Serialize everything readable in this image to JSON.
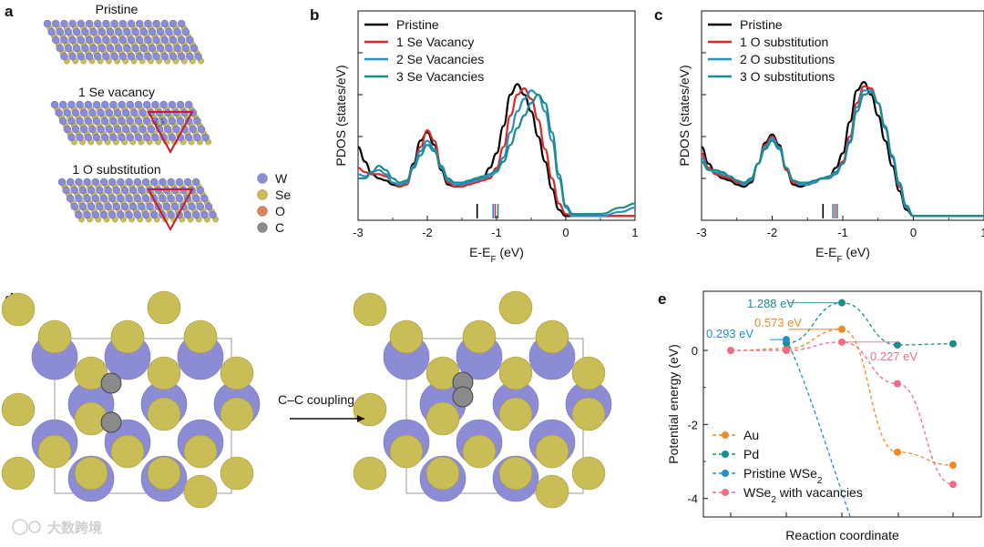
{
  "panels": {
    "a": {
      "letter": "a",
      "titles": [
        "Pristine",
        "1 Se vacancy",
        "1 O substitution"
      ],
      "atom_legend": [
        {
          "name": "W",
          "color": "#8c8cd6"
        },
        {
          "name": "Se",
          "color": "#c9bd58"
        },
        {
          "name": "O",
          "color": "#d9825e"
        },
        {
          "name": "C",
          "color": "#8a8a8a"
        }
      ]
    },
    "b": {
      "letter": "b"
    },
    "c": {
      "letter": "c"
    },
    "d": {
      "letter": "d",
      "arrow_label": "C–C coupling"
    },
    "e": {
      "letter": "e"
    }
  },
  "chart_data": [
    {
      "panel": "b",
      "type": "line",
      "xlabel": "E-E",
      "xlabel_sub": "F",
      "xlabel_unit": " (eV)",
      "ylabel": "PDOS (states/eV)",
      "xlim": [
        -3,
        1
      ],
      "ylim": [
        0,
        1
      ],
      "xticks": [
        -3,
        -2,
        -1,
        0,
        1
      ],
      "legend_placement": "top-left",
      "series": [
        {
          "name": "Pristine",
          "color": "#000000",
          "x": [
            -3,
            -2.9,
            -2.8,
            -2.7,
            -2.6,
            -2.5,
            -2.4,
            -2.3,
            -2.2,
            -2.1,
            -2.0,
            -1.9,
            -1.8,
            -1.7,
            -1.6,
            -1.5,
            -1.4,
            -1.3,
            -1.2,
            -1.1,
            -1.0,
            -0.9,
            -0.8,
            -0.7,
            -0.6,
            -0.5,
            -0.4,
            -0.3,
            -0.2,
            -0.1,
            0,
            0.1,
            0.2,
            0.5,
            1
          ],
          "y": [
            0.35,
            0.28,
            0.22,
            0.2,
            0.19,
            0.17,
            0.16,
            0.18,
            0.27,
            0.38,
            0.42,
            0.36,
            0.24,
            0.17,
            0.16,
            0.17,
            0.18,
            0.2,
            0.2,
            0.25,
            0.32,
            0.45,
            0.6,
            0.65,
            0.6,
            0.52,
            0.4,
            0.28,
            0.15,
            0.05,
            0.02,
            0.02,
            0.02,
            0.02,
            0.02
          ]
        },
        {
          "name": "1 Se Vacancy",
          "color": "#d62b2b",
          "x": [
            -3,
            -2.9,
            -2.8,
            -2.7,
            -2.6,
            -2.5,
            -2.4,
            -2.3,
            -2.2,
            -2.1,
            -2.0,
            -1.9,
            -1.8,
            -1.7,
            -1.6,
            -1.5,
            -1.4,
            -1.3,
            -1.2,
            -1.1,
            -1.0,
            -0.9,
            -0.8,
            -0.7,
            -0.6,
            -0.5,
            -0.4,
            -0.3,
            -0.2,
            -0.1,
            0,
            0.1,
            0.2,
            0.5,
            1
          ],
          "y": [
            0.25,
            0.23,
            0.22,
            0.22,
            0.21,
            0.18,
            0.16,
            0.17,
            0.25,
            0.35,
            0.43,
            0.38,
            0.26,
            0.18,
            0.16,
            0.16,
            0.17,
            0.18,
            0.19,
            0.2,
            0.25,
            0.35,
            0.5,
            0.6,
            0.63,
            0.58,
            0.48,
            0.34,
            0.2,
            0.08,
            0.03,
            0.02,
            0.02,
            0.02,
            0.02
          ]
        },
        {
          "name": "2 Se Vacancies",
          "color": "#2a8fc4",
          "x": [
            -3,
            -2.9,
            -2.8,
            -2.7,
            -2.6,
            -2.5,
            -2.4,
            -2.3,
            -2.2,
            -2.1,
            -2.0,
            -1.9,
            -1.8,
            -1.7,
            -1.6,
            -1.5,
            -1.4,
            -1.3,
            -1.2,
            -1.1,
            -1.0,
            -0.9,
            -0.8,
            -0.7,
            -0.6,
            -0.5,
            -0.4,
            -0.3,
            -0.2,
            -0.1,
            0,
            0.1,
            0.2,
            0.5,
            0.8,
            1
          ],
          "y": [
            0.22,
            0.21,
            0.23,
            0.24,
            0.22,
            0.18,
            0.17,
            0.18,
            0.26,
            0.33,
            0.38,
            0.34,
            0.25,
            0.19,
            0.17,
            0.17,
            0.18,
            0.19,
            0.2,
            0.21,
            0.23,
            0.3,
            0.42,
            0.52,
            0.58,
            0.62,
            0.6,
            0.52,
            0.38,
            0.2,
            0.06,
            0.02,
            0.02,
            0.02,
            0.04,
            0.06
          ]
        },
        {
          "name": "3 Se Vacancies",
          "color": "#1a8c8c",
          "x": [
            -3,
            -2.9,
            -2.8,
            -2.7,
            -2.6,
            -2.5,
            -2.4,
            -2.3,
            -2.2,
            -2.1,
            -2.0,
            -1.9,
            -1.8,
            -1.7,
            -1.6,
            -1.5,
            -1.4,
            -1.3,
            -1.2,
            -1.1,
            -1.0,
            -0.9,
            -0.8,
            -0.7,
            -0.6,
            -0.5,
            -0.4,
            -0.3,
            -0.2,
            -0.1,
            0,
            0.1,
            0.2,
            0.5,
            0.8,
            1
          ],
          "y": [
            0.2,
            0.2,
            0.23,
            0.26,
            0.24,
            0.2,
            0.18,
            0.19,
            0.25,
            0.31,
            0.36,
            0.33,
            0.26,
            0.2,
            0.18,
            0.18,
            0.19,
            0.2,
            0.21,
            0.22,
            0.24,
            0.28,
            0.36,
            0.44,
            0.5,
            0.56,
            0.6,
            0.56,
            0.42,
            0.22,
            0.07,
            0.03,
            0.03,
            0.03,
            0.06,
            0.08
          ]
        }
      ],
      "fermi_markers": [
        {
          "x": -1.28,
          "color": "#000000"
        },
        {
          "x": -1.05,
          "color": "#2a8fc4"
        },
        {
          "x": -1.02,
          "color": "#d62b2b"
        },
        {
          "x": -0.98,
          "color": "#1a8c8c"
        }
      ]
    },
    {
      "panel": "c",
      "type": "line",
      "xlabel": "E-E",
      "xlabel_sub": "F",
      "xlabel_unit": " (eV)",
      "ylabel": "PDOS (states/eV)",
      "xlim": [
        -3,
        1
      ],
      "ylim": [
        0,
        1
      ],
      "xticks": [
        -3,
        -2,
        -1,
        0,
        1
      ],
      "legend_placement": "top-left",
      "series": [
        {
          "name": "Pristine",
          "color": "#000000",
          "x": [
            -3,
            -2.9,
            -2.8,
            -2.7,
            -2.6,
            -2.5,
            -2.4,
            -2.3,
            -2.2,
            -2.1,
            -2.0,
            -1.9,
            -1.8,
            -1.7,
            -1.6,
            -1.5,
            -1.4,
            -1.3,
            -1.2,
            -1.1,
            -1.0,
            -0.9,
            -0.8,
            -0.7,
            -0.6,
            -0.5,
            -0.4,
            -0.3,
            -0.2,
            -0.1,
            0,
            0.1,
            0.2,
            0.5,
            1
          ],
          "y": [
            0.35,
            0.27,
            0.22,
            0.2,
            0.19,
            0.17,
            0.16,
            0.18,
            0.27,
            0.37,
            0.41,
            0.36,
            0.24,
            0.17,
            0.16,
            0.17,
            0.18,
            0.2,
            0.2,
            0.25,
            0.32,
            0.47,
            0.62,
            0.66,
            0.6,
            0.5,
            0.38,
            0.26,
            0.14,
            0.05,
            0.02,
            0.02,
            0.02,
            0.02,
            0.02
          ]
        },
        {
          "name": "1 O substitution",
          "color": "#d62b2b",
          "x": [
            -3,
            -2.9,
            -2.8,
            -2.7,
            -2.6,
            -2.5,
            -2.4,
            -2.3,
            -2.2,
            -2.1,
            -2.0,
            -1.9,
            -1.8,
            -1.7,
            -1.6,
            -1.5,
            -1.4,
            -1.3,
            -1.2,
            -1.1,
            -1.0,
            -0.9,
            -0.8,
            -0.7,
            -0.6,
            -0.5,
            -0.4,
            -0.3,
            -0.2,
            -0.1,
            0,
            0.1,
            0.2,
            0.5,
            1
          ],
          "y": [
            0.32,
            0.25,
            0.22,
            0.21,
            0.2,
            0.18,
            0.17,
            0.19,
            0.27,
            0.36,
            0.4,
            0.35,
            0.24,
            0.18,
            0.17,
            0.17,
            0.18,
            0.2,
            0.2,
            0.22,
            0.28,
            0.4,
            0.56,
            0.64,
            0.63,
            0.56,
            0.44,
            0.3,
            0.16,
            0.06,
            0.02,
            0.02,
            0.02,
            0.02,
            0.02
          ]
        },
        {
          "name": "2 O substitutions",
          "color": "#2a8fc4",
          "x": [
            -3,
            -2.9,
            -2.8,
            -2.7,
            -2.6,
            -2.5,
            -2.4,
            -2.3,
            -2.2,
            -2.1,
            -2.0,
            -1.9,
            -1.8,
            -1.7,
            -1.6,
            -1.5,
            -1.4,
            -1.3,
            -1.2,
            -1.1,
            -1.0,
            -0.9,
            -0.8,
            -0.7,
            -0.6,
            -0.5,
            -0.4,
            -0.3,
            -0.2,
            -0.1,
            0,
            0.1,
            0.2,
            0.5,
            1
          ],
          "y": [
            0.3,
            0.24,
            0.23,
            0.22,
            0.21,
            0.19,
            0.17,
            0.19,
            0.27,
            0.35,
            0.39,
            0.35,
            0.25,
            0.19,
            0.17,
            0.17,
            0.18,
            0.2,
            0.2,
            0.22,
            0.27,
            0.38,
            0.54,
            0.62,
            0.62,
            0.56,
            0.44,
            0.3,
            0.17,
            0.06,
            0.02,
            0.02,
            0.02,
            0.02,
            0.02
          ]
        },
        {
          "name": "3 O substitutions",
          "color": "#1a8c8c",
          "x": [
            -3,
            -2.9,
            -2.8,
            -2.7,
            -2.6,
            -2.5,
            -2.4,
            -2.3,
            -2.2,
            -2.1,
            -2.0,
            -1.9,
            -1.8,
            -1.7,
            -1.6,
            -1.5,
            -1.4,
            -1.3,
            -1.2,
            -1.1,
            -1.0,
            -0.9,
            -0.8,
            -0.7,
            -0.6,
            -0.5,
            -0.4,
            -0.3,
            -0.2,
            -0.1,
            0,
            0.1,
            0.2,
            0.5,
            1
          ],
          "y": [
            0.28,
            0.24,
            0.24,
            0.23,
            0.21,
            0.19,
            0.18,
            0.2,
            0.27,
            0.34,
            0.38,
            0.34,
            0.25,
            0.19,
            0.18,
            0.18,
            0.19,
            0.2,
            0.21,
            0.23,
            0.27,
            0.37,
            0.52,
            0.6,
            0.61,
            0.56,
            0.45,
            0.31,
            0.18,
            0.07,
            0.02,
            0.02,
            0.02,
            0.02,
            0.02
          ]
        }
      ],
      "fermi_markers": [
        {
          "x": -1.28,
          "color": "#000000"
        },
        {
          "x": -1.14,
          "color": "#2a8fc4"
        },
        {
          "x": -1.11,
          "color": "#d62b2b"
        },
        {
          "x": -1.08,
          "color": "#1a8c8c"
        }
      ]
    },
    {
      "panel": "e",
      "type": "line",
      "xlabel": "Reaction coordinate",
      "ylabel": "Potential energy (eV)",
      "xlim": [
        0,
        5
      ],
      "ylim": [
        -4.5,
        1.6
      ],
      "yticks": [
        0,
        -2,
        -4
      ],
      "legend_placement": "bottom-left",
      "series": [
        {
          "name": "Au",
          "color": "#f08a24",
          "x": [
            0,
            1,
            2,
            3,
            4
          ],
          "y": [
            0,
            0.05,
            0.573,
            -2.75,
            -3.1
          ]
        },
        {
          "name": "Pd",
          "color": "#1a8c8c",
          "x": [
            1,
            2,
            3,
            4
          ],
          "y": [
            0.2,
            1.288,
            0.15,
            0.18
          ]
        },
        {
          "name": "Pristine WSe",
          "name_sub": "2",
          "color": "#1f8fc6",
          "x": [
            1
          ],
          "y": [
            0.293
          ],
          "curve_tail": [
            [
              1,
              0.293
            ],
            [
              1.3,
              -0.6
            ],
            [
              1.7,
              -2.5
            ],
            [
              2.15,
              -4.5
            ]
          ]
        },
        {
          "name": "WSe",
          "name_sub": "2",
          "name_suffix": " with vacancies",
          "color": "#ef6b86",
          "x": [
            0,
            1,
            2,
            3,
            4
          ],
          "y": [
            0,
            0,
            0.227,
            -0.9,
            -3.62
          ]
        }
      ],
      "annotations": [
        {
          "text": "1.288 eV",
          "color": "#1a8c8c"
        },
        {
          "text": "0.573 eV",
          "color": "#f08a24"
        },
        {
          "text": "0.293 eV",
          "color": "#1f8fc6"
        },
        {
          "text": "0.227 eV",
          "color": "#ef6b86"
        }
      ]
    }
  ],
  "watermark": "大数跨境"
}
